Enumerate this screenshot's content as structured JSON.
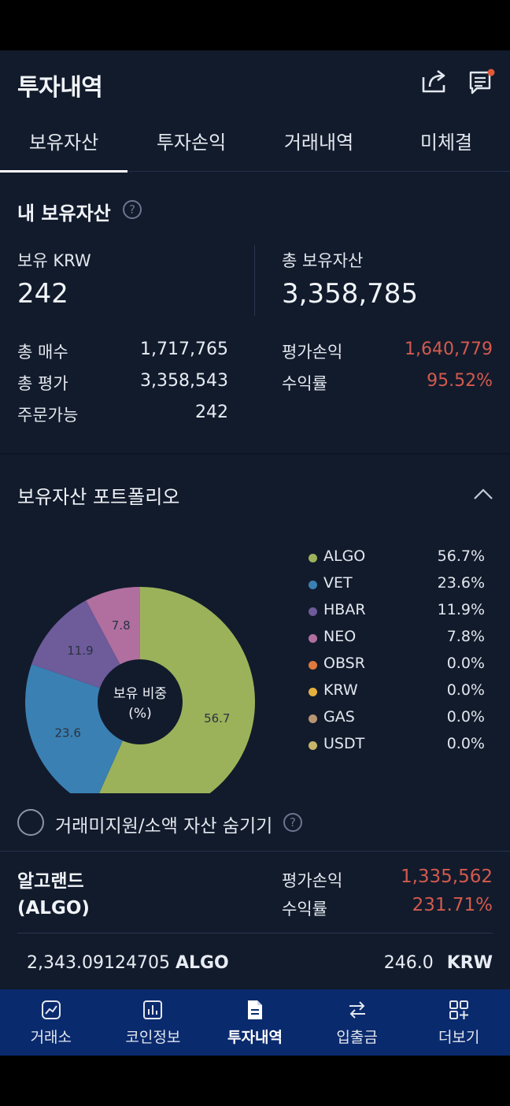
{
  "header": {
    "title": "투자내역"
  },
  "tabs": [
    {
      "label": "보유자산",
      "active": true
    },
    {
      "label": "투자손익"
    },
    {
      "label": "거래내역"
    },
    {
      "label": "미체결"
    }
  ],
  "assets": {
    "title": "내 보유자산",
    "help": "?",
    "krw_label": "보유 KRW",
    "krw_value": "242",
    "total_label": "총 보유자산",
    "total_value": "3,358,785",
    "rows_left": [
      {
        "label": "총 매수",
        "value": "1,717,765"
      },
      {
        "label": "총 평가",
        "value": "3,358,543"
      },
      {
        "label": "주문가능",
        "value": "242"
      }
    ],
    "rows_right": [
      {
        "label": "평가손익",
        "value": "1,640,779"
      },
      {
        "label": "수익률",
        "value": "95.52%"
      }
    ]
  },
  "portfolio": {
    "title": "보유자산 포트폴리오",
    "center_line1": "보유 비중",
    "center_line2": "(%)",
    "legend": [
      {
        "name": "ALGO",
        "pct": "56.7%",
        "color": "#9cb25a"
      },
      {
        "name": "VET",
        "pct": "23.6%",
        "color": "#3a80b3"
      },
      {
        "name": "HBAR",
        "pct": "11.9%",
        "color": "#6d5b9a"
      },
      {
        "name": "NEO",
        "pct": "7.8%",
        "color": "#b06f9f"
      },
      {
        "name": "OBSR",
        "pct": "0.0%",
        "color": "#e07a3c"
      },
      {
        "name": "KRW",
        "pct": "0.0%",
        "color": "#e6b03e"
      },
      {
        "name": "GAS",
        "pct": "0.0%",
        "color": "#b89572"
      },
      {
        "name": "USDT",
        "pct": "0.0%",
        "color": "#c8b56a"
      }
    ]
  },
  "chart_data": {
    "type": "pie",
    "categories": [
      "ALGO",
      "VET",
      "HBAR",
      "NEO"
    ],
    "values": [
      56.7,
      23.6,
      11.9,
      7.8
    ],
    "colors": [
      "#9cb25a",
      "#3a80b3",
      "#6d5b9a",
      "#b06f9f"
    ],
    "labels": [
      "56.7",
      "23.6",
      "11.9",
      "7.8"
    ]
  },
  "hide": {
    "label": "거래미지원/소액 자산 숨기기",
    "help": "?"
  },
  "coin": {
    "name_line1": "알고랜드",
    "name_line2": "(ALGO)",
    "pl_label": "평가손익",
    "pl_value": "1,335,562",
    "rr_label": "수익률",
    "rr_value": "231.71%",
    "qty_value": "2,343.09124705",
    "qty_unit": "ALGO",
    "avg_value": "246.0",
    "avg_unit": "KRW"
  },
  "bottomnav": [
    {
      "label": "거래소",
      "icon": "chart-line-icon"
    },
    {
      "label": "코인정보",
      "icon": "bar-chart-icon"
    },
    {
      "label": "투자내역",
      "icon": "document-icon",
      "active": true
    },
    {
      "label": "입출금",
      "icon": "transfer-arrows-icon"
    },
    {
      "label": "더보기",
      "icon": "grid-plus-icon"
    }
  ]
}
